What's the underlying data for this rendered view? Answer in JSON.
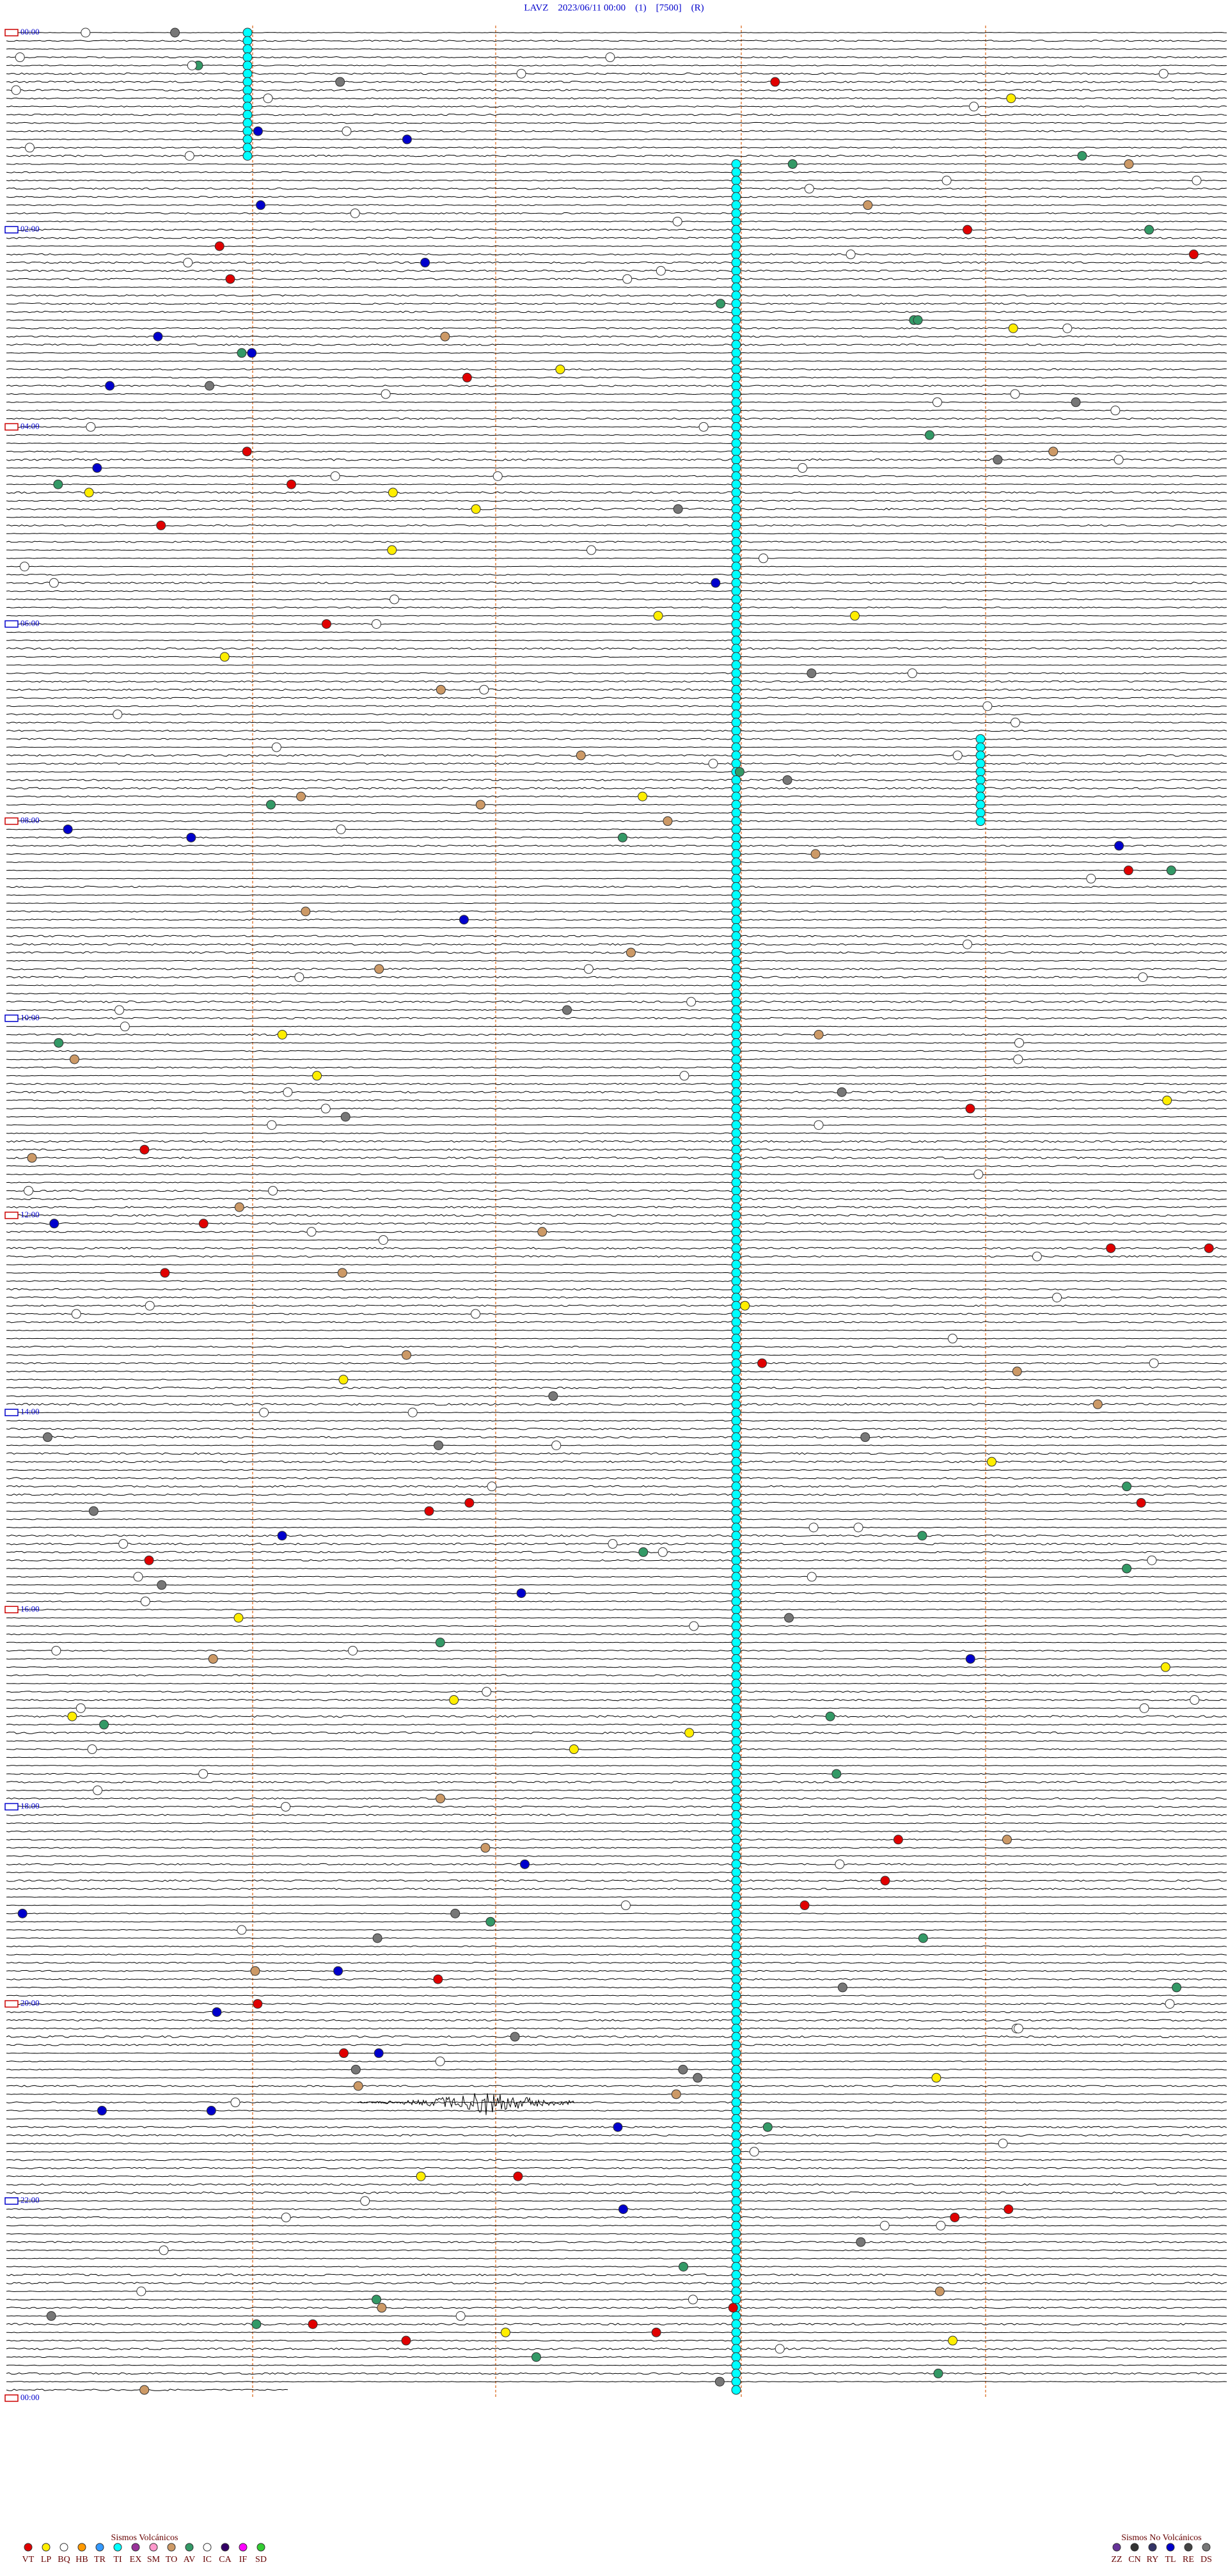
{
  "header": {
    "title": "LAVZ    2023/06/11 00:00    (1)    [7500]    (R)"
  },
  "time_labels": [
    "00:00",
    "02:00",
    "04:00",
    "06:00",
    "08:00",
    "10:00",
    "12:00",
    "14:00",
    "16:00",
    "18:00",
    "20:00",
    "22:00",
    "00:00"
  ],
  "legend": {
    "volcanic": {
      "title": "Sismos Volcánicos",
      "items": [
        {
          "code": "VT",
          "color": "#e00000"
        },
        {
          "code": "LP",
          "color": "#ffee00"
        },
        {
          "code": "BQ",
          "color": "#ffffff"
        },
        {
          "code": "HB",
          "color": "#ff9900"
        },
        {
          "code": "TR",
          "color": "#3399ff"
        },
        {
          "code": "TI",
          "color": "#00ffff"
        },
        {
          "code": "EX",
          "color": "#993399"
        },
        {
          "code": "SM",
          "color": "#ff99cc"
        },
        {
          "code": "TO",
          "color": "#cc9966"
        },
        {
          "code": "AV",
          "color": "#339966"
        },
        {
          "code": "IC",
          "color": "#ffffff"
        },
        {
          "code": "CA",
          "color": "#330066"
        },
        {
          "code": "IF",
          "color": "#ff00ff"
        },
        {
          "code": "SD",
          "color": "#33cc33"
        }
      ]
    },
    "non_volcanic": {
      "title": "Sismos No Volcánicos",
      "items": [
        {
          "code": "ZZ",
          "color": "#663399"
        },
        {
          "code": "CN",
          "color": "#333333"
        },
        {
          "code": "RY",
          "color": "#333366"
        },
        {
          "code": "TL",
          "color": "#0000cc"
        },
        {
          "code": "RE",
          "color": "#444444"
        },
        {
          "code": "DS",
          "color": "#777777"
        }
      ]
    }
  }
}
